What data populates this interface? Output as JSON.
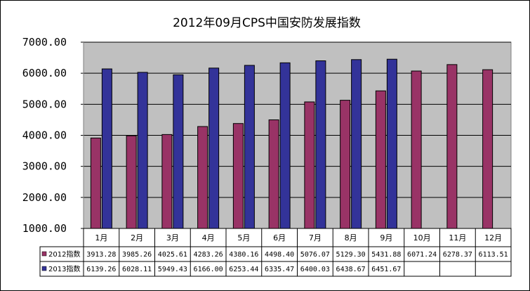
{
  "chart_data": {
    "type": "bar",
    "title": "2012年09月CPS中国安防发展指数",
    "categories": [
      "1月",
      "2月",
      "3月",
      "4月",
      "5月",
      "6月",
      "7月",
      "8月",
      "9月",
      "10月",
      "11月",
      "12月"
    ],
    "y_ticks": [
      "1000.00",
      "2000.00",
      "3000.00",
      "4000.00",
      "5000.00",
      "6000.00",
      "7000.00"
    ],
    "ylim": [
      1000,
      7000
    ],
    "grid": true,
    "legend": "data-table",
    "series": [
      {
        "name": "2012指数",
        "color": "#993366",
        "values": [
          3913.28,
          3985.26,
          4025.61,
          4283.26,
          4380.16,
          4498.4,
          5076.07,
          5129.3,
          5431.88,
          6071.24,
          6278.37,
          6113.51
        ],
        "labels": [
          "3913.28",
          "3985.26",
          "4025.61",
          "4283.26",
          "4380.16",
          "4498.40",
          "5076.07",
          "5129.30",
          "5431.88",
          "6071.24",
          "6278.37",
          "6113.51"
        ]
      },
      {
        "name": "2013指数",
        "color": "#333399",
        "values": [
          6139.26,
          6028.11,
          5949.43,
          6166.0,
          6253.44,
          6335.47,
          6400.03,
          6438.67,
          6451.67,
          null,
          null,
          null
        ],
        "labels": [
          "6139.26",
          "6028.11",
          "5949.43",
          "6166.00",
          "6253.44",
          "6335.47",
          "6400.03",
          "6438.67",
          "6451.67",
          "",
          "",
          ""
        ]
      }
    ]
  }
}
